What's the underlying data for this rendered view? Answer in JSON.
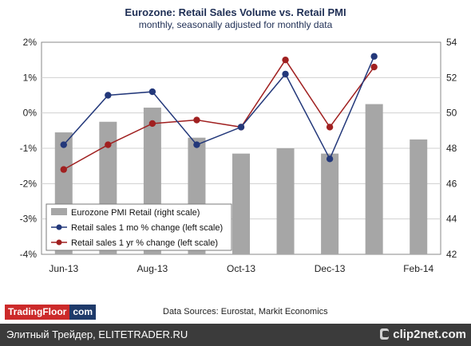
{
  "header": {
    "title": "Eurozone: Retail Sales Volume vs. Retail PMI",
    "subtitle": "monthly, seasonally adjusted for monthly data"
  },
  "chart_data": {
    "type": "bar+line",
    "x_categories": [
      "Jun-13",
      "Jul-13",
      "Aug-13",
      "Sep-13",
      "Oct-13",
      "Nov-13",
      "Dec-13",
      "Jan-14",
      "Feb-14"
    ],
    "x_tick_labels": [
      "Jun-13",
      "Aug-13",
      "Oct-13",
      "Dec-13",
      "Feb-14"
    ],
    "left_axis": {
      "ylim": [
        -4,
        2
      ],
      "ticks": [
        "2%",
        "1%",
        "0%",
        "-1%",
        "-2%",
        "-3%",
        "-4%"
      ]
    },
    "right_axis": {
      "ylim": [
        42,
        54
      ],
      "ticks": [
        "54",
        "52",
        "50",
        "48",
        "46",
        "44",
        "42"
      ]
    },
    "grid": "horizontal",
    "legend_position": "bottom-left",
    "colors": {
      "bar": "#a6a6a6",
      "mom": "#23387a",
      "yoy": "#a02020"
    },
    "series": [
      {
        "name": "Eurozone PMI Retail (right scale)",
        "type": "bar",
        "axis": "right",
        "values": [
          48.9,
          49.5,
          50.3,
          48.6,
          47.7,
          48.0,
          47.7,
          50.5,
          48.5
        ]
      },
      {
        "name": "Retail sales 1 mo % change (left scale)",
        "type": "line",
        "axis": "left",
        "values": [
          -0.9,
          0.5,
          0.6,
          -0.9,
          -0.4,
          1.1,
          -1.3,
          1.6,
          null
        ]
      },
      {
        "name": "Retail sales 1 yr % change (left scale)",
        "type": "line",
        "axis": "left",
        "values": [
          -1.6,
          -0.9,
          -0.3,
          -0.2,
          -0.4,
          1.5,
          -0.4,
          1.3,
          null
        ]
      }
    ]
  },
  "branding": {
    "brand_part1": "TradingFloor",
    "brand_part2": "com",
    "sources": "Data Sources: Eurostat, Markit Economics"
  },
  "footer": {
    "site_text": "Элитный Трейдер, ELITETRADER.RU",
    "watermark": "clip2net.com",
    "watermark_icon": "clip2net-icon"
  }
}
